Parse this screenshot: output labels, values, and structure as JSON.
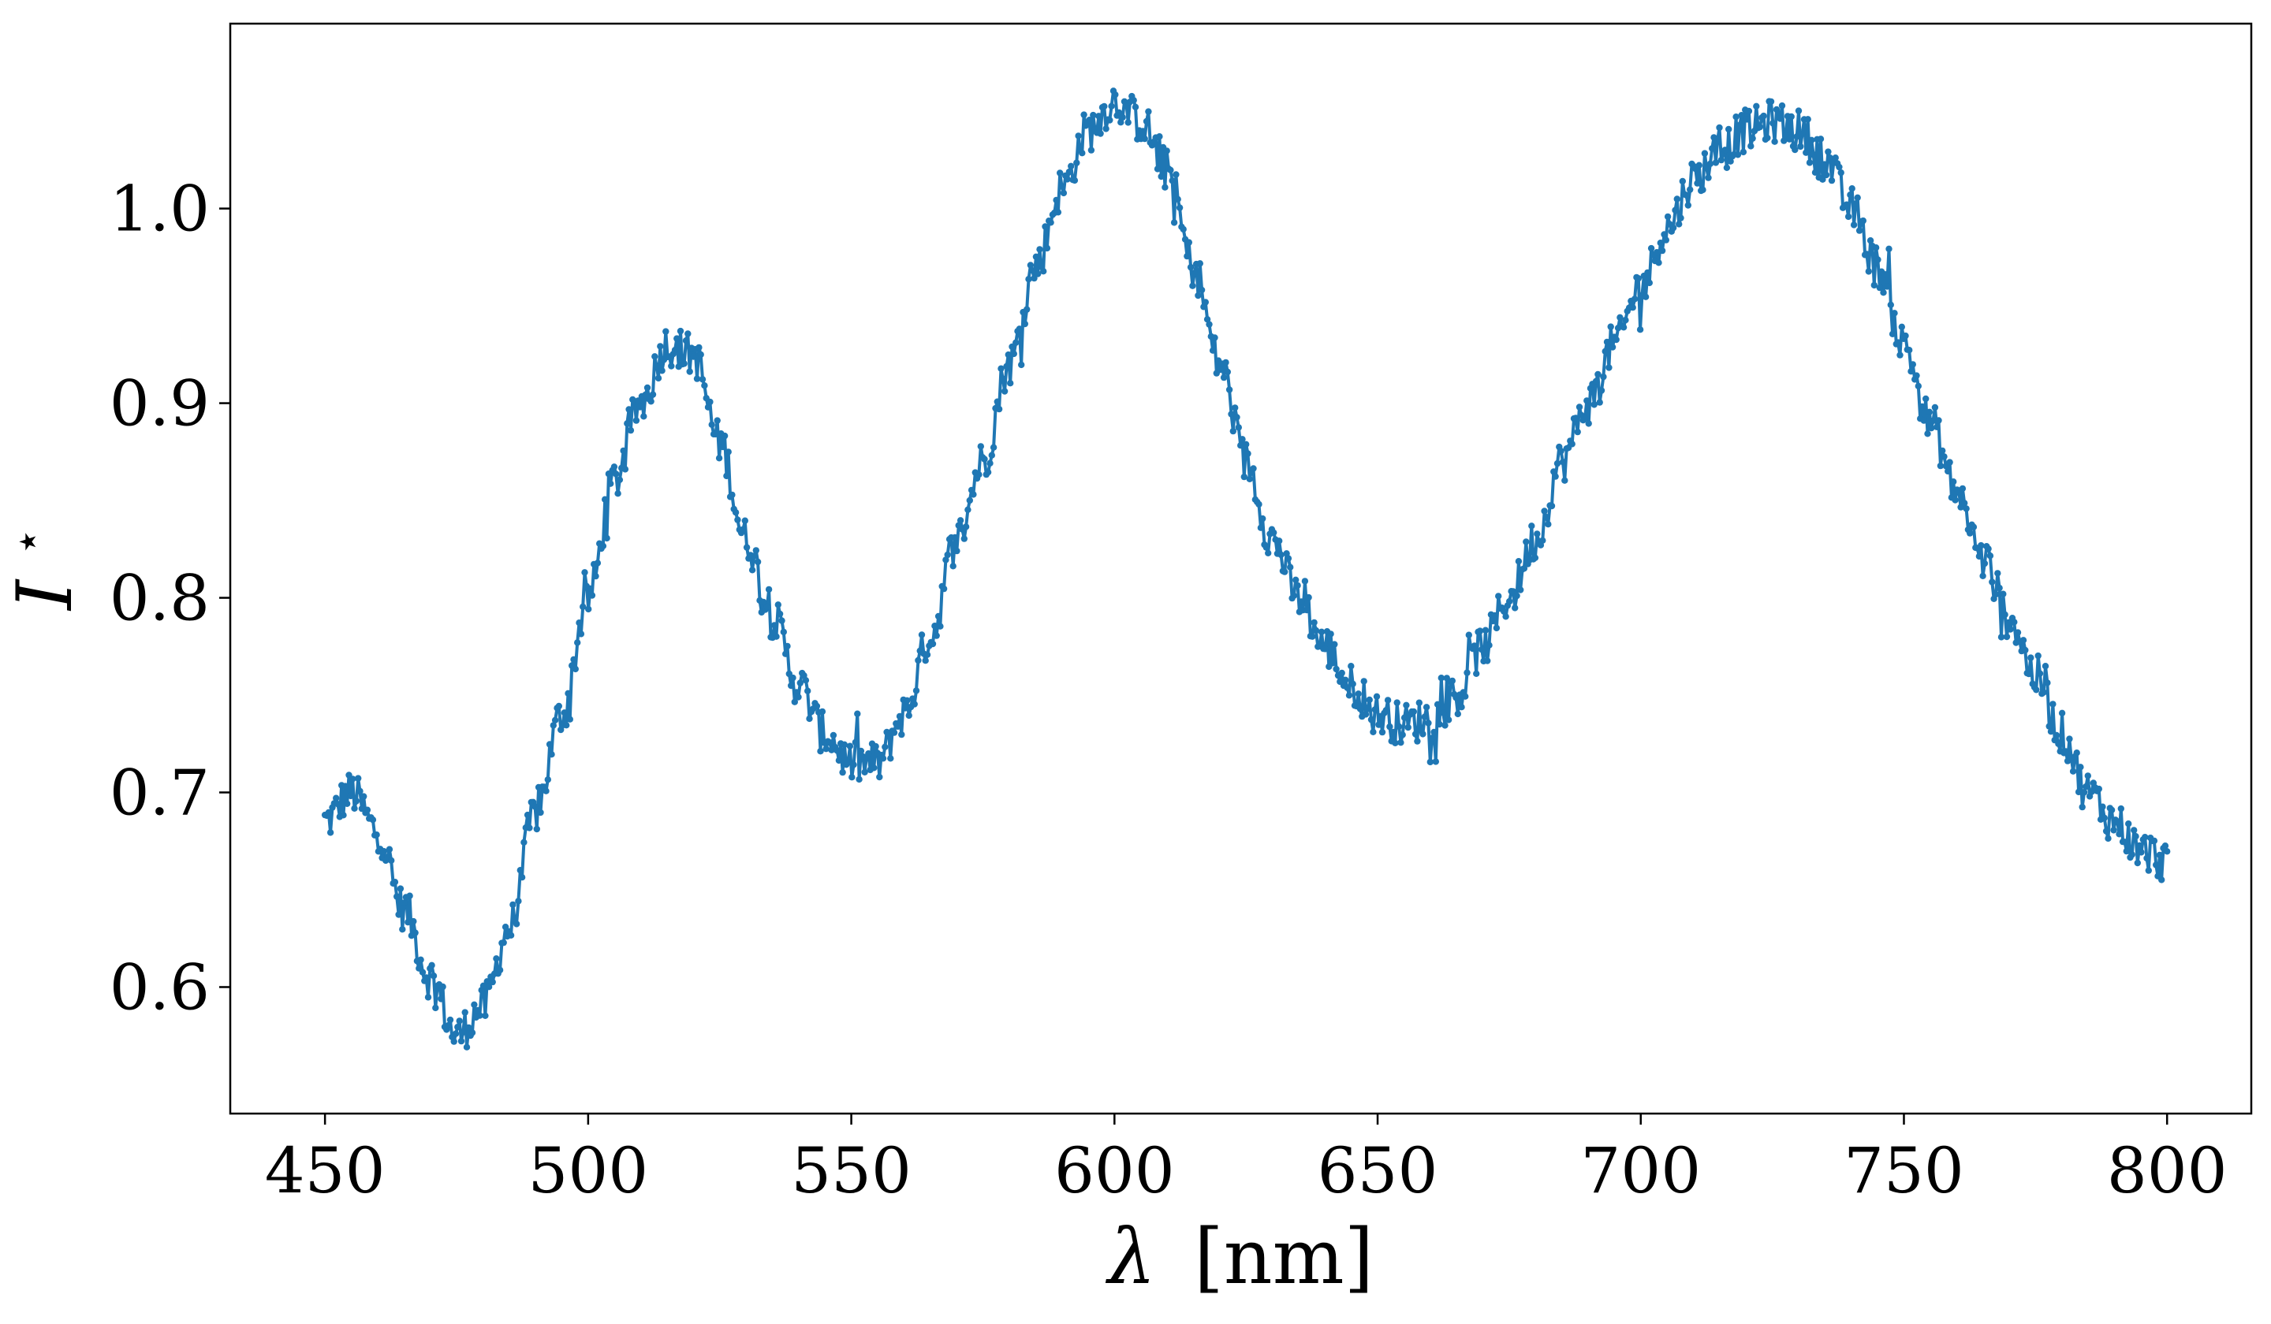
{
  "chart_data": {
    "type": "line",
    "title": "",
    "xlabel_symbol": "λ",
    "xlabel_unit": "[nm]",
    "ylabel_symbol": "I",
    "ylabel_sup": "⋆",
    "xlim": [
      432,
      816
    ],
    "ylim": [
      0.535,
      1.095
    ],
    "x_ticks": [
      450,
      500,
      550,
      600,
      650,
      700,
      750,
      800
    ],
    "x_tick_labels": [
      "450",
      "500",
      "550",
      "600",
      "650",
      "700",
      "750",
      "800"
    ],
    "y_ticks": [
      0.6,
      0.7,
      0.8,
      0.9,
      1.0
    ],
    "y_tick_labels": [
      "0.6",
      "0.7",
      "0.8",
      "0.9",
      "1.0"
    ],
    "grid": false,
    "series_color": "#1f77b4",
    "x_step_nm": 0.35,
    "series": [
      {
        "x": [
          450,
          455,
          460,
          465,
          470,
          475,
          480,
          485,
          490,
          495,
          500,
          505,
          510,
          515,
          520,
          525,
          530,
          535,
          540,
          545,
          550,
          555,
          560,
          565,
          570,
          575,
          580,
          585,
          590,
          595,
          600,
          605,
          610,
          615,
          620,
          625,
          630,
          635,
          640,
          645,
          650,
          655,
          660,
          665,
          670,
          675,
          680,
          685,
          690,
          695,
          700,
          705,
          710,
          715,
          720,
          725,
          730,
          735,
          740,
          745,
          750,
          755,
          760,
          765,
          770,
          775,
          780,
          785,
          790,
          795,
          800
        ],
        "y": [
          0.685,
          0.7,
          0.68,
          0.64,
          0.605,
          0.575,
          0.59,
          0.63,
          0.69,
          0.74,
          0.8,
          0.86,
          0.9,
          0.93,
          0.925,
          0.88,
          0.83,
          0.79,
          0.755,
          0.73,
          0.715,
          0.715,
          0.74,
          0.78,
          0.83,
          0.87,
          0.92,
          0.97,
          1.01,
          1.04,
          1.055,
          1.045,
          1.02,
          0.97,
          0.92,
          0.87,
          0.83,
          0.8,
          0.775,
          0.755,
          0.74,
          0.735,
          0.738,
          0.75,
          0.775,
          0.8,
          0.83,
          0.87,
          0.9,
          0.93,
          0.96,
          0.99,
          1.015,
          1.03,
          1.04,
          1.045,
          1.04,
          1.025,
          1.0,
          0.97,
          0.93,
          0.89,
          0.855,
          0.82,
          0.79,
          0.76,
          0.73,
          0.7,
          0.685,
          0.67,
          0.665
        ]
      }
    ]
  }
}
